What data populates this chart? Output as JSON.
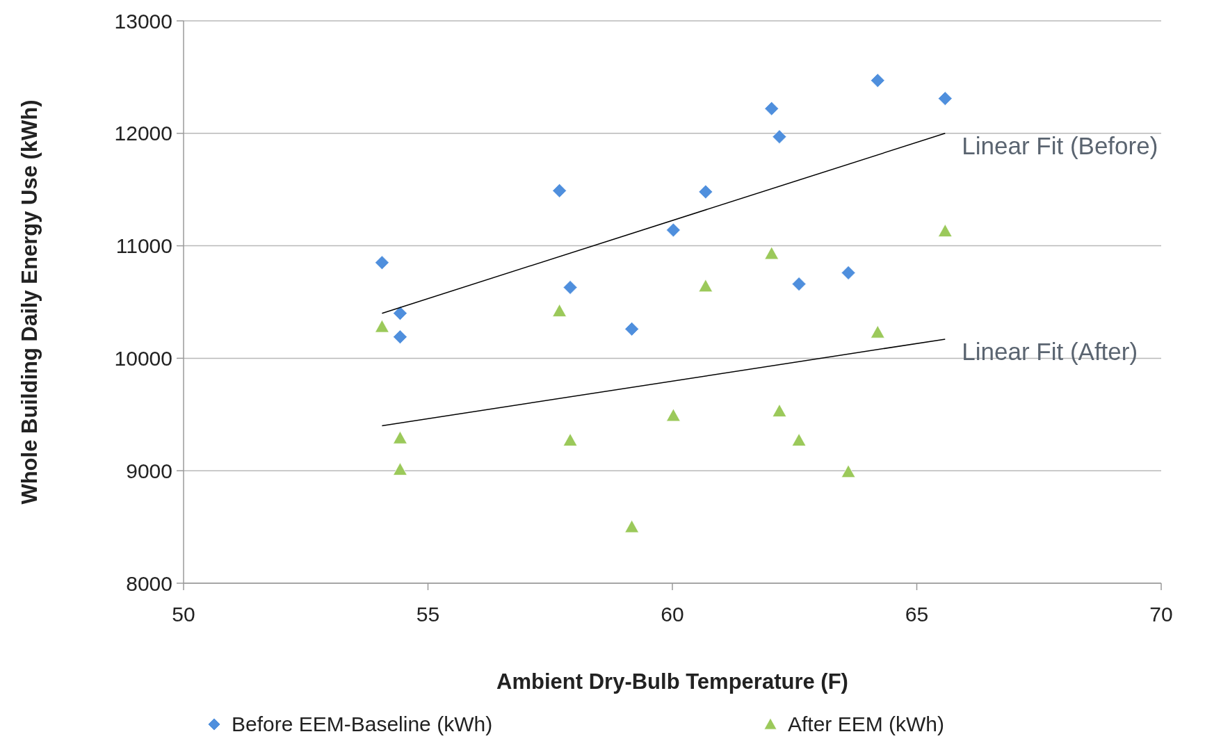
{
  "chart_data": {
    "type": "scatter",
    "xlabel": "Ambient Dry-Bulb Temperature (F)",
    "ylabel": "Whole Building Daily Energy Use (kWh)",
    "xlim": [
      50,
      70
    ],
    "xticks": [
      50,
      55,
      60,
      65,
      70
    ],
    "ylim": [
      8000,
      13000
    ],
    "yticks": [
      8000,
      9000,
      10000,
      11000,
      12000,
      13000
    ],
    "grid": "y",
    "legend": "bottom",
    "series": [
      {
        "name": "Before EEM-Baseline (kWh)",
        "color": "#4f8fdd",
        "marker": "diamond",
        "x": [
          54.06,
          54.43,
          54.43,
          57.69,
          57.91,
          59.17,
          60.02,
          60.68,
          62.03,
          62.19,
          62.59,
          63.6,
          64.2,
          65.58
        ],
        "values": [
          10850,
          10400,
          10190,
          11490,
          10630,
          10260,
          11140,
          11480,
          12220,
          11970,
          10660,
          10760,
          12470,
          12310
        ]
      },
      {
        "name": "After EEM (kWh)",
        "color": "#9bc95a",
        "marker": "triangle",
        "x": [
          54.06,
          54.43,
          54.43,
          57.69,
          57.91,
          59.17,
          60.02,
          60.68,
          62.03,
          62.19,
          62.59,
          63.6,
          64.2,
          65.58
        ],
        "values": [
          10280,
          9290,
          9010,
          10420,
          9270,
          8500,
          9490,
          10640,
          10930,
          9530,
          9270,
          8990,
          10230,
          11130
        ]
      },
      {
        "type": "line",
        "color": "#000000",
        "marker": "none",
        "x": [
          54.06,
          65.58
        ],
        "values": [
          10400,
          12000
        ]
      },
      {
        "type": "line",
        "color": "#000000",
        "marker": "none",
        "x": [
          54.06,
          65.58
        ],
        "values": [
          9400,
          10170
        ]
      }
    ],
    "annotations": [
      {
        "text": "Linear Fit (Before)",
        "x": 65.58,
        "y": 12000
      },
      {
        "text": "Linear Fit (After)",
        "x": 65.58,
        "y": 10170
      }
    ]
  }
}
